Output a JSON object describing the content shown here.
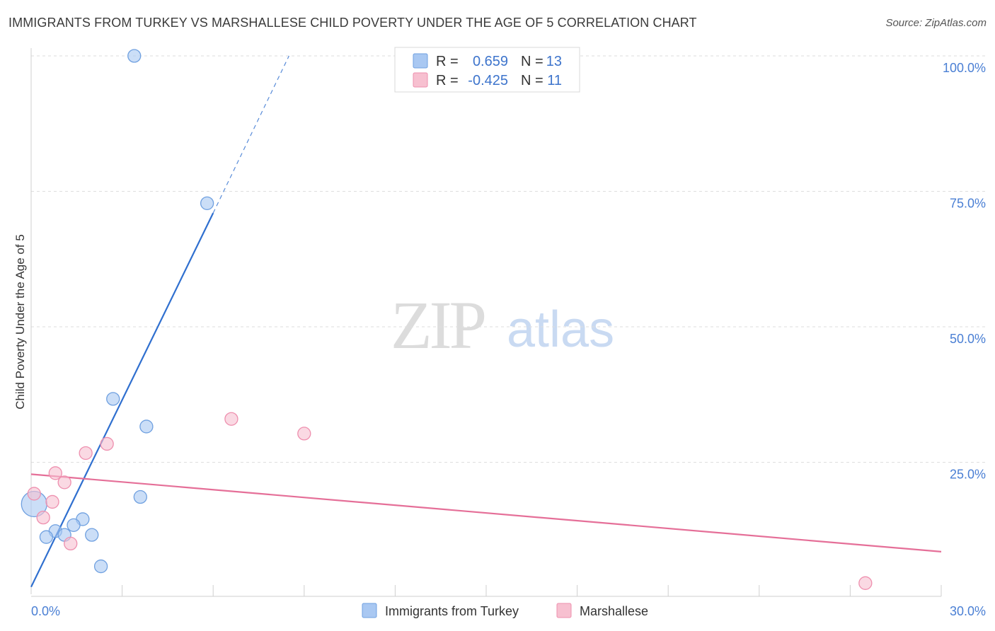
{
  "title": "IMMIGRANTS FROM TURKEY VS MARSHALLESE CHILD POVERTY UNDER THE AGE OF 5 CORRELATION CHART",
  "source": "Source: ZipAtlas.com",
  "watermark": {
    "zip": "ZIP",
    "atlas": "atlas"
  },
  "legend_top": [
    {
      "r_label": "R =",
      "r_value": "0.659",
      "n_label": "N =",
      "n_value": "13",
      "color": "#a9c8f2",
      "stroke": "#6fa0e0"
    },
    {
      "r_label": "R =",
      "r_value": "-0.425",
      "n_label": "N =",
      "n_value": "11",
      "color": "#f7c0d0",
      "stroke": "#ee8fae"
    }
  ],
  "chart_data": {
    "type": "scatter",
    "xlabel": "",
    "ylabel": "Child Poverty Under the Age of 5",
    "xlim": [
      0,
      30
    ],
    "ylim": [
      0,
      100
    ],
    "x_tick_labels": [
      "0.0%",
      "30.0%"
    ],
    "y_ticks": [
      25,
      50,
      75,
      100
    ],
    "y_tick_labels": [
      "25.0%",
      "50.0%",
      "75.0%",
      "100.0%"
    ],
    "grid": true,
    "series": [
      {
        "name": "Immigrants from Turkey",
        "color": "#a9c8f2",
        "stroke": "#6fa0e0",
        "line_color": "#2f6fcf",
        "points": [
          {
            "x": 3.4,
            "y": 100.0,
            "r": 9
          },
          {
            "x": 5.8,
            "y": 72.8,
            "r": 9
          },
          {
            "x": 2.7,
            "y": 36.7,
            "r": 9
          },
          {
            "x": 3.8,
            "y": 31.6,
            "r": 9
          },
          {
            "x": 3.6,
            "y": 18.6,
            "r": 9
          },
          {
            "x": 0.1,
            "y": 17.3,
            "r": 18
          },
          {
            "x": 1.7,
            "y": 14.5,
            "r": 9
          },
          {
            "x": 1.4,
            "y": 13.4,
            "r": 9
          },
          {
            "x": 0.8,
            "y": 12.3,
            "r": 9
          },
          {
            "x": 1.1,
            "y": 11.6,
            "r": 9
          },
          {
            "x": 2.0,
            "y": 11.6,
            "r": 9
          },
          {
            "x": 0.5,
            "y": 11.2,
            "r": 9
          },
          {
            "x": 2.3,
            "y": 5.8,
            "r": 9
          }
        ],
        "trend": {
          "x_start": 0.0,
          "y_start": 2.0,
          "x_end": 6.0,
          "y_end": 71.0,
          "x_dash_end": 8.5,
          "y_dash_end": 100.0
        }
      },
      {
        "name": "Marshallese",
        "color": "#f7c0d0",
        "stroke": "#ee8fae",
        "line_color": "#e56f98",
        "points": [
          {
            "x": 6.6,
            "y": 33.0,
            "r": 9
          },
          {
            "x": 9.0,
            "y": 30.3,
            "r": 9
          },
          {
            "x": 2.5,
            "y": 28.4,
            "r": 9
          },
          {
            "x": 1.8,
            "y": 26.7,
            "r": 9
          },
          {
            "x": 0.8,
            "y": 23.0,
            "r": 9
          },
          {
            "x": 1.1,
            "y": 21.3,
            "r": 9
          },
          {
            "x": 0.1,
            "y": 19.2,
            "r": 9
          },
          {
            "x": 0.7,
            "y": 17.7,
            "r": 9
          },
          {
            "x": 0.4,
            "y": 14.8,
            "r": 9
          },
          {
            "x": 1.3,
            "y": 10.0,
            "r": 9
          },
          {
            "x": 27.5,
            "y": 2.7,
            "r": 9
          }
        ],
        "trend": {
          "x_start": 0.0,
          "y_start": 22.8,
          "x_end": 30.0,
          "y_end": 8.5
        }
      }
    ]
  }
}
